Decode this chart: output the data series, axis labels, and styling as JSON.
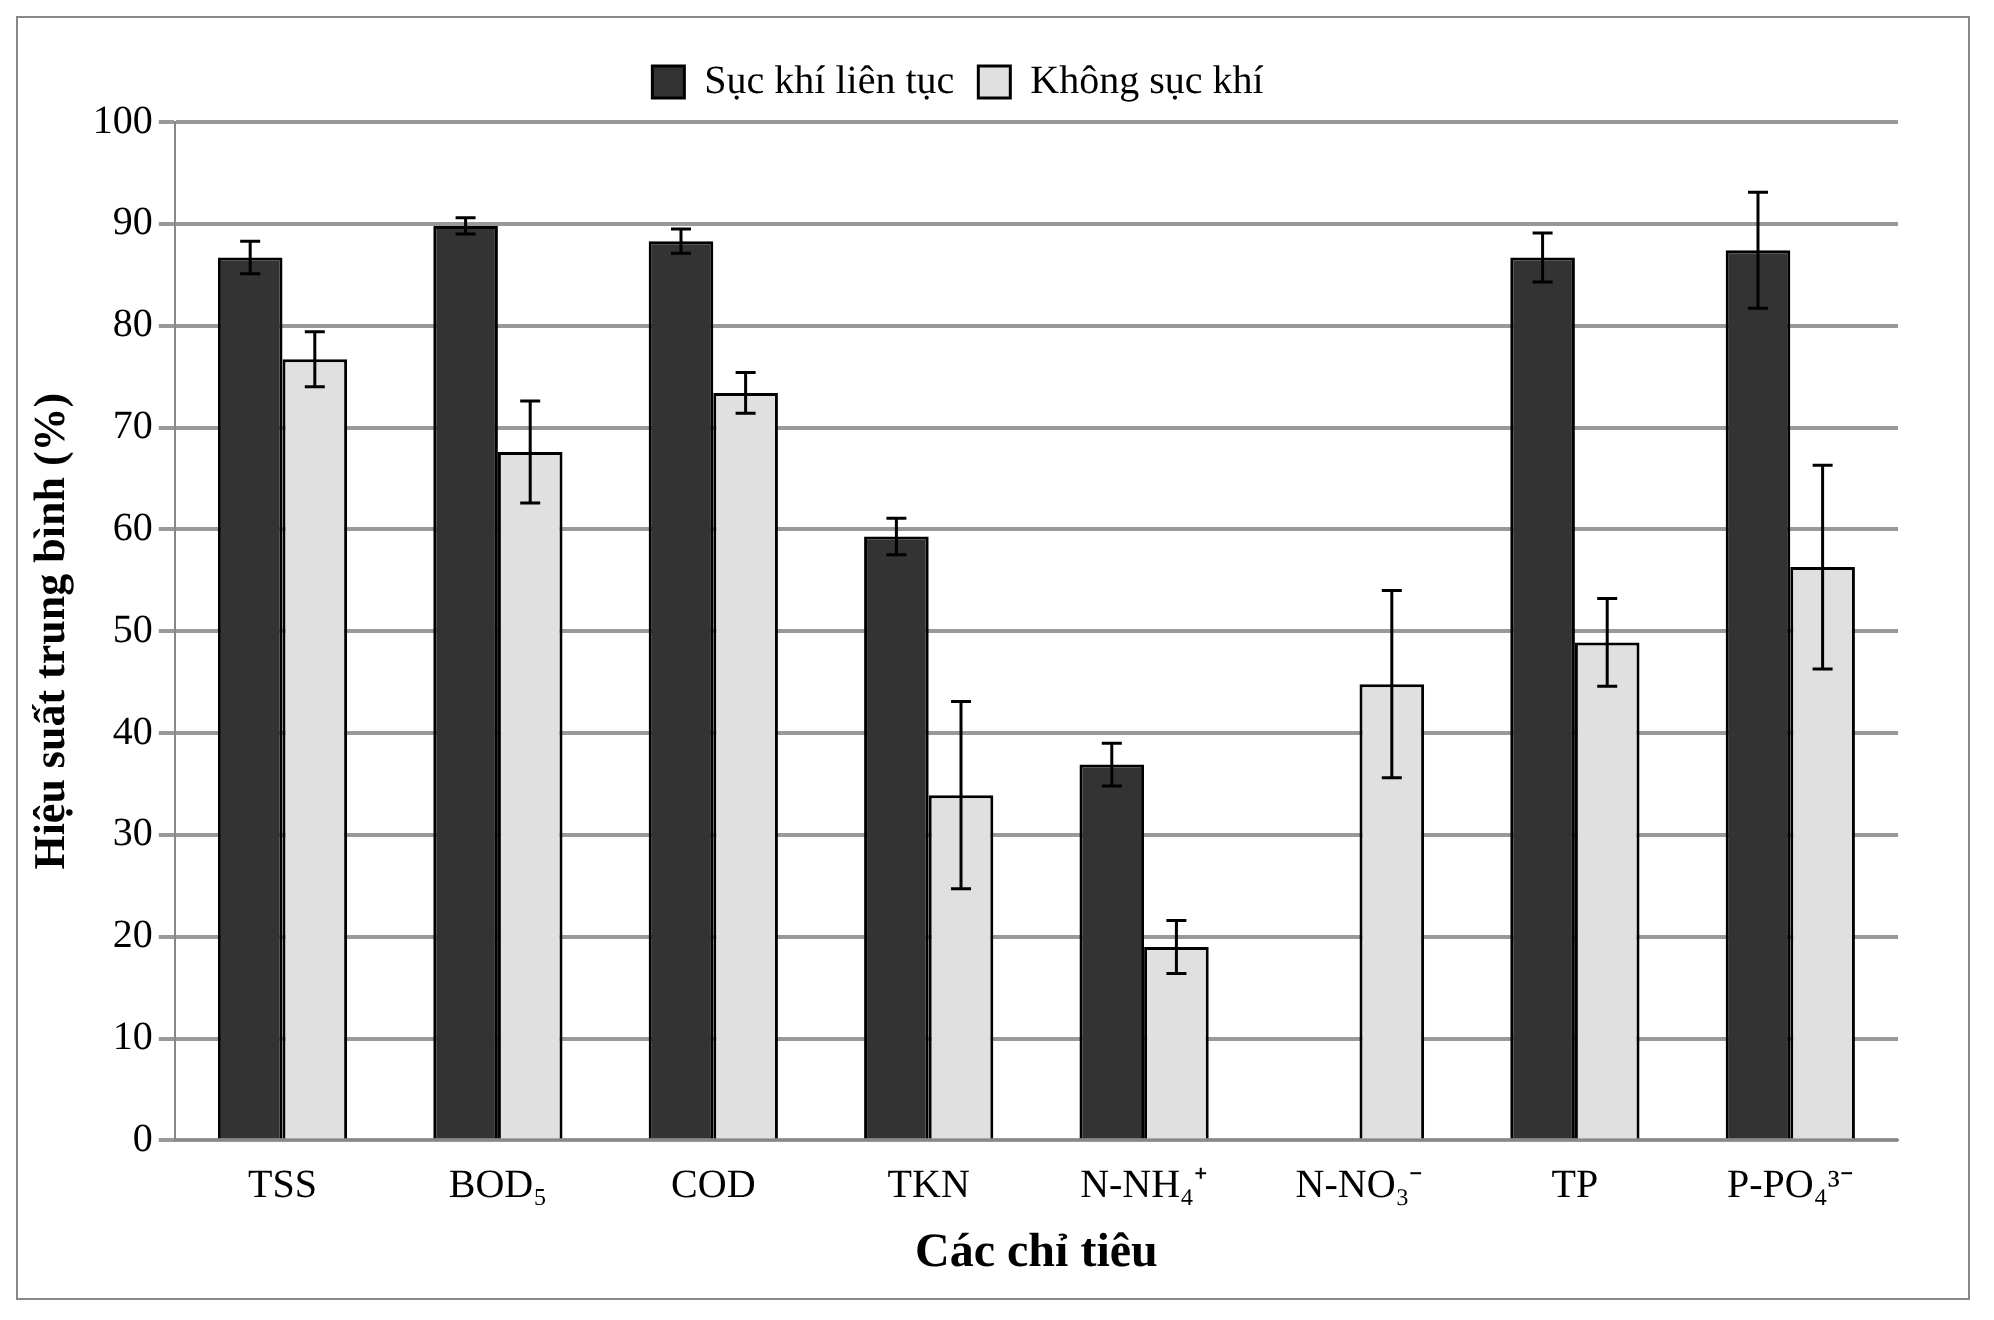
{
  "chart_data": {
    "type": "bar",
    "xlabel": "Các chỉ tiêu",
    "ylabel": "Hiệu suất trung bình (%)",
    "categories": [
      "TSS",
      "BOD₅",
      "COD",
      "TKN",
      "N-NH₄⁺",
      "N-NO₃⁻",
      "TP",
      "P-PO₄³⁻"
    ],
    "series": [
      {
        "name": "Sục khí liên tục",
        "color": "#333333",
        "values": [
          86.7,
          89.8,
          88.3,
          59.3,
          36.9,
          null,
          86.7,
          87.4
        ],
        "errors": [
          1.6,
          0.8,
          1.2,
          1.8,
          2.1,
          null,
          2.4,
          5.7
        ]
      },
      {
        "name": "Không sục khí",
        "color": "#e0e0e0",
        "values": [
          76.7,
          67.6,
          73.4,
          33.9,
          19.0,
          44.8,
          48.9,
          56.3
        ],
        "errors": [
          2.7,
          5,
          2,
          9.2,
          2.6,
          9.2,
          4.3,
          10
        ]
      }
    ],
    "ylim": [
      0,
      100
    ],
    "yticks": [
      0,
      10,
      20,
      30,
      40,
      50,
      60,
      70,
      80,
      90,
      100
    ],
    "grid": "y",
    "legend": "top"
  }
}
